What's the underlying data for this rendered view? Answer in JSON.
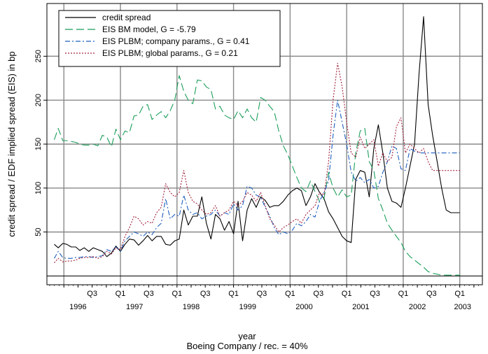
{
  "chart_data": {
    "type": "line",
    "xlabel": "year",
    "subtitle": "Boeing Company / rec. = 40%",
    "ylabel": "credit spread / EDF implied spread (EIS) in bp",
    "xlim": [
      1995.7,
      2003.4
    ],
    "ylim": [
      -10,
      310
    ],
    "y_ticks": [
      50,
      100,
      150,
      200,
      250
    ],
    "year_labels": [
      {
        "label": "1996",
        "x": 1996.25
      },
      {
        "label": "1997",
        "x": 1997.25
      },
      {
        "label": "1998",
        "x": 1998.25
      },
      {
        "label": "1999",
        "x": 1999.25
      },
      {
        "label": "2000",
        "x": 2000.25
      },
      {
        "label": "2001",
        "x": 2001.25
      },
      {
        "label": "2002",
        "x": 2002.25
      },
      {
        "label": "2003",
        "x": 2003.05
      }
    ],
    "quarter_labels": [
      {
        "label": "Q3",
        "x": 1996.5
      },
      {
        "label": "Q1",
        "x": 1997.0
      },
      {
        "label": "Q3",
        "x": 1997.5
      },
      {
        "label": "Q1",
        "x": 1998.0
      },
      {
        "label": "Q3",
        "x": 1998.5
      },
      {
        "label": "Q1",
        "x": 1999.0
      },
      {
        "label": "Q3",
        "x": 1999.5
      },
      {
        "label": "Q1",
        "x": 2000.0
      },
      {
        "label": "Q3",
        "x": 2000.5
      },
      {
        "label": "Q1",
        "x": 2001.0
      },
      {
        "label": "Q3",
        "x": 2001.5
      },
      {
        "label": "Q1",
        "x": 2002.0
      },
      {
        "label": "Q3",
        "x": 2002.5
      },
      {
        "label": "Q1",
        "x": 2003.0
      }
    ],
    "grid": true,
    "legend_position": "top-left",
    "series": [
      {
        "name": "credit spread",
        "color": "#000000",
        "style": "solid",
        "x": [
          1995.83,
          1995.9,
          1995.98,
          1996.05,
          1996.13,
          1996.21,
          1996.28,
          1996.36,
          1996.44,
          1996.52,
          1996.6,
          1996.68,
          1996.76,
          1996.84,
          1996.92,
          1997.0,
          1997.08,
          1997.16,
          1997.24,
          1997.32,
          1997.4,
          1997.48,
          1997.56,
          1997.64,
          1997.72,
          1997.8,
          1997.88,
          1997.96,
          1998.04,
          1998.12,
          1998.2,
          1998.28,
          1998.36,
          1998.44,
          1998.52,
          1998.6,
          1998.68,
          1998.76,
          1998.84,
          1998.92,
          1999.0,
          1999.08,
          1999.16,
          1999.24,
          1999.32,
          1999.4,
          1999.48,
          1999.56,
          1999.64,
          1999.72,
          1999.8,
          1999.88,
          1999.96,
          2000.04,
          2000.12,
          2000.2,
          2000.28,
          2000.36,
          2000.44,
          2000.52,
          2000.6,
          2000.68,
          2000.76,
          2000.84,
          2000.92,
          2001.0,
          2001.08,
          2001.16,
          2001.24,
          2001.32,
          2001.4,
          2001.48,
          2001.56,
          2001.64,
          2001.72,
          2001.8,
          2001.88,
          2001.96,
          2002.04,
          2002.12,
          2002.2,
          2002.28,
          2002.36,
          2002.44,
          2002.52,
          2002.6,
          2002.68,
          2002.76,
          2002.84,
          2002.92,
          2003.0
        ],
        "y": [
          36,
          32,
          37,
          36,
          33,
          33,
          29,
          32,
          28,
          32,
          30,
          28,
          22,
          26,
          34,
          28,
          36,
          42,
          41,
          35,
          40,
          46,
          40,
          45,
          45,
          36,
          35,
          40,
          42,
          75,
          58,
          68,
          68,
          90,
          60,
          42,
          70,
          65,
          52,
          62,
          48,
          85,
          40,
          75,
          88,
          78,
          90,
          86,
          78,
          80,
          80,
          85,
          92,
          97,
          100,
          97,
          80,
          90,
          105,
          95,
          88,
          73,
          65,
          55,
          45,
          40,
          38,
          110,
          120,
          118,
          90,
          145,
          172,
          140,
          100,
          85,
          83,
          78,
          100,
          125,
          150,
          230,
          295,
          195,
          160,
          130,
          100,
          75,
          72,
          72,
          72
        ]
      },
      {
        "name": "EIS BM model, G = -5.79",
        "color": "#1b9e5a",
        "style": "dashed",
        "x": [
          1995.83,
          1995.9,
          1995.98,
          1996.05,
          1996.13,
          1996.21,
          1996.28,
          1996.36,
          1996.44,
          1996.52,
          1996.6,
          1996.68,
          1996.76,
          1996.84,
          1996.92,
          1997.0,
          1997.08,
          1997.16,
          1997.24,
          1997.32,
          1997.4,
          1997.48,
          1997.56,
          1997.64,
          1997.72,
          1997.8,
          1997.88,
          1997.96,
          1998.04,
          1998.12,
          1998.2,
          1998.28,
          1998.36,
          1998.44,
          1998.52,
          1998.6,
          1998.68,
          1998.76,
          1998.84,
          1998.92,
          1999.0,
          1999.08,
          1999.16,
          1999.24,
          1999.32,
          1999.4,
          1999.48,
          1999.56,
          1999.64,
          1999.72,
          1999.8,
          1999.88,
          1999.96,
          2000.04,
          2000.12,
          2000.2,
          2000.28,
          2000.36,
          2000.44,
          2000.52,
          2000.6,
          2000.68,
          2000.76,
          2000.84,
          2000.92,
          2001.0,
          2001.08,
          2001.16,
          2001.24,
          2001.32,
          2001.4,
          2001.48,
          2001.56,
          2001.64,
          2001.72,
          2001.8,
          2001.88,
          2001.96,
          2002.04,
          2002.12,
          2002.2,
          2002.28,
          2002.36,
          2002.44,
          2002.52,
          2002.6,
          2002.68,
          2002.76,
          2002.84,
          2002.92,
          2003.0
        ],
        "y": [
          155,
          168,
          154,
          154,
          153,
          152,
          150,
          149,
          149,
          150,
          148,
          160,
          158,
          147,
          167,
          155,
          165,
          163,
          182,
          183,
          193,
          195,
          178,
          183,
          187,
          180,
          188,
          200,
          228,
          210,
          200,
          196,
          223,
          222,
          215,
          212,
          190,
          193,
          183,
          180,
          178,
          188,
          180,
          190,
          180,
          175,
          203,
          200,
          193,
          187,
          165,
          148,
          138,
          125,
          112,
          100,
          96,
          108,
          96,
          85,
          88,
          118,
          100,
          90,
          98,
          90,
          92,
          140,
          165,
          168,
          130,
          120,
          88,
          75,
          60,
          52,
          45,
          38,
          28,
          22,
          18,
          14,
          10,
          5,
          3,
          2,
          1,
          1,
          1,
          1,
          1
        ]
      },
      {
        "name": "EIS PLBM; company params., G = 0.41",
        "color": "#1f5fbf",
        "style": "dashdot",
        "x": [
          1995.83,
          1995.9,
          1995.98,
          1996.05,
          1996.13,
          1996.21,
          1996.28,
          1996.36,
          1996.44,
          1996.52,
          1996.6,
          1996.68,
          1996.76,
          1996.84,
          1996.92,
          1997.0,
          1997.08,
          1997.16,
          1997.24,
          1997.32,
          1997.4,
          1997.48,
          1997.56,
          1997.64,
          1997.72,
          1997.8,
          1997.88,
          1997.96,
          1998.04,
          1998.12,
          1998.2,
          1998.28,
          1998.36,
          1998.44,
          1998.52,
          1998.6,
          1998.68,
          1998.76,
          1998.84,
          1998.92,
          1999.0,
          1999.08,
          1999.16,
          1999.24,
          1999.32,
          1999.4,
          1999.48,
          1999.56,
          1999.64,
          1999.72,
          1999.8,
          1999.88,
          1999.96,
          2000.04,
          2000.12,
          2000.2,
          2000.28,
          2000.36,
          2000.44,
          2000.52,
          2000.6,
          2000.68,
          2000.76,
          2000.84,
          2000.92,
          2001.0,
          2001.08,
          2001.16,
          2001.24,
          2001.32,
          2001.4,
          2001.48,
          2001.56,
          2001.64,
          2001.72,
          2001.8,
          2001.88,
          2001.96,
          2002.04,
          2002.12,
          2002.2,
          2002.28,
          2002.36,
          2002.44,
          2002.52,
          2002.6,
          2002.68,
          2002.76,
          2002.84,
          2002.92,
          2003.0
        ],
        "y": [
          20,
          28,
          21,
          20,
          20,
          21,
          21,
          22,
          22,
          21,
          22,
          23,
          30,
          28,
          33,
          28,
          40,
          45,
          50,
          48,
          45,
          50,
          47,
          55,
          60,
          88,
          65,
          70,
          68,
          92,
          75,
          70,
          72,
          65,
          68,
          70,
          75,
          68,
          72,
          70,
          82,
          75,
          80,
          102,
          100,
          92,
          90,
          78,
          68,
          55,
          47,
          50,
          48,
          52,
          60,
          57,
          62,
          70,
          67,
          85,
          95,
          108,
          160,
          200,
          175,
          150,
          118,
          108,
          112,
          106,
          110,
          100,
          102,
          118,
          130,
          148,
          145,
          122,
          120,
          145,
          142,
          140,
          140,
          140,
          140,
          140,
          140,
          140,
          140,
          140,
          140
        ]
      },
      {
        "name": "EIS PLBM; global params., G = 0.21",
        "color": "#a0203a",
        "style": "dotted",
        "x": [
          1995.83,
          1995.9,
          1995.98,
          1996.05,
          1996.13,
          1996.21,
          1996.28,
          1996.36,
          1996.44,
          1996.52,
          1996.6,
          1996.68,
          1996.76,
          1996.84,
          1996.92,
          1997.0,
          1997.08,
          1997.16,
          1997.24,
          1997.32,
          1997.4,
          1997.48,
          1997.56,
          1997.64,
          1997.72,
          1997.8,
          1997.88,
          1997.96,
          1998.04,
          1998.12,
          1998.2,
          1998.28,
          1998.36,
          1998.44,
          1998.52,
          1998.6,
          1998.68,
          1998.76,
          1998.84,
          1998.92,
          1999.0,
          1999.08,
          1999.16,
          1999.24,
          1999.32,
          1999.4,
          1999.48,
          1999.56,
          1999.64,
          1999.72,
          1999.8,
          1999.88,
          1999.96,
          2000.04,
          2000.12,
          2000.2,
          2000.28,
          2000.36,
          2000.44,
          2000.52,
          2000.6,
          2000.68,
          2000.76,
          2000.84,
          2000.92,
          2001.0,
          2001.08,
          2001.16,
          2001.24,
          2001.32,
          2001.4,
          2001.48,
          2001.56,
          2001.64,
          2001.72,
          2001.8,
          2001.88,
          2001.96,
          2002.04,
          2002.12,
          2002.2,
          2002.28,
          2002.36,
          2002.44,
          2002.52,
          2002.6,
          2002.68,
          2002.76,
          2002.84,
          2002.92,
          2003.0
        ],
        "y": [
          15,
          20,
          16,
          17,
          17,
          18,
          20,
          21,
          21,
          22,
          20,
          22,
          28,
          25,
          32,
          30,
          45,
          55,
          68,
          65,
          58,
          62,
          60,
          72,
          78,
          105,
          95,
          90,
          95,
          120,
          95,
          85,
          82,
          75,
          70,
          72,
          80,
          68,
          72,
          75,
          85,
          80,
          85,
          95,
          92,
          85,
          95,
          80,
          65,
          58,
          50,
          55,
          58,
          62,
          65,
          60,
          70,
          75,
          80,
          95,
          92,
          130,
          200,
          242,
          215,
          175,
          140,
          135,
          158,
          145,
          150,
          155,
          125,
          140,
          130,
          135,
          170,
          180,
          140,
          150,
          145,
          140,
          145,
          130,
          120,
          120,
          120,
          120,
          120,
          120,
          120
        ]
      }
    ]
  }
}
